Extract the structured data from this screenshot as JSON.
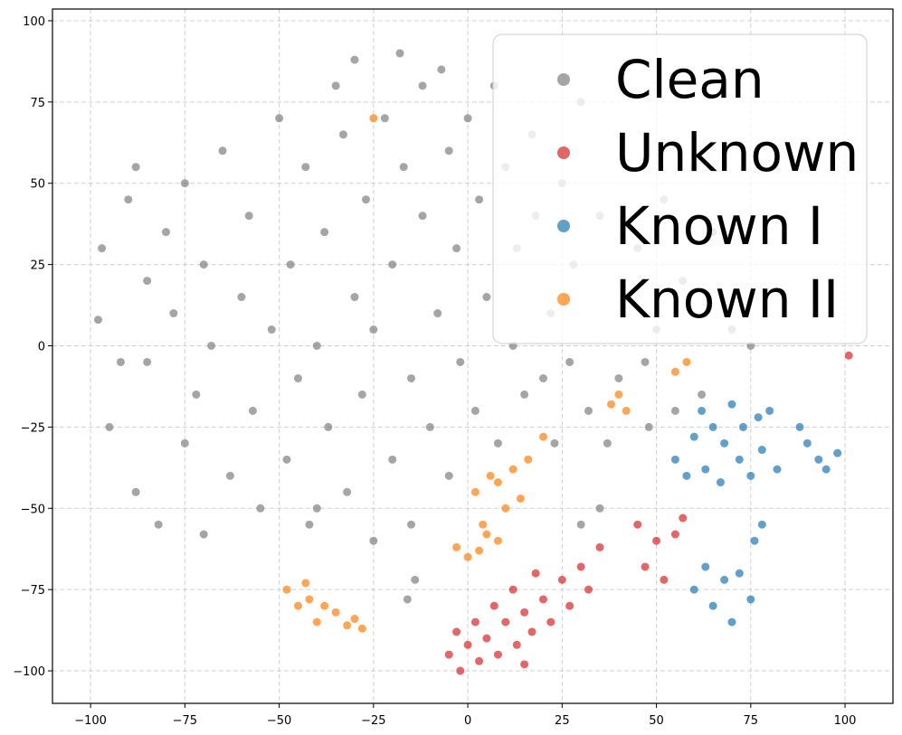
{
  "chart_data": {
    "type": "scatter",
    "xlim": [
      -110.1,
      112.7
    ],
    "ylim": [
      -110,
      103.6
    ],
    "xticks": [
      {
        "value": -100,
        "label": "−100"
      },
      {
        "value": -75,
        "label": "−75"
      },
      {
        "value": -50,
        "label": "−50"
      },
      {
        "value": -25,
        "label": "−25"
      },
      0,
      25,
      50,
      75,
      100
    ],
    "yticks": [
      {
        "value": -100,
        "label": "−100"
      },
      {
        "value": -75,
        "label": "−75"
      },
      {
        "value": -50,
        "label": "−50"
      },
      {
        "value": -25,
        "label": "−25"
      },
      0,
      25,
      50,
      75,
      100
    ],
    "grid": true,
    "legend": "upper right",
    "series": [
      {
        "name": "Clean",
        "color": "#7f7f7f",
        "x": [
          -98,
          -95,
          -97,
          -90,
          -88,
          -85,
          -85,
          -82,
          -80,
          -78,
          -75,
          -75,
          -72,
          -70,
          -70,
          -68,
          -65,
          -63,
          -60,
          -58,
          -57,
          -55,
          -52,
          -50,
          -48,
          -47,
          -45,
          -43,
          -42,
          -40,
          -38,
          -37,
          -35,
          -33,
          -32,
          -30,
          -30,
          -28,
          -27,
          -25,
          -25,
          -22,
          -20,
          -20,
          -18,
          -17,
          -15,
          -15,
          -12,
          -12,
          -10,
          -8,
          -7,
          -5,
          -5,
          -3,
          -2,
          0,
          2,
          3,
          5,
          7,
          8,
          10,
          12,
          13,
          15,
          17,
          18,
          20,
          22,
          23,
          25,
          27,
          28,
          30,
          32,
          35,
          37,
          40,
          42,
          45,
          47,
          48,
          50,
          52,
          55,
          57,
          60,
          62,
          65,
          70,
          75,
          -14,
          -16,
          30,
          35,
          -40,
          -92,
          -88
        ],
        "y": [
          8,
          -25,
          30,
          45,
          -45,
          20,
          -5,
          -55,
          35,
          10,
          -30,
          50,
          -15,
          25,
          -58,
          0,
          60,
          -40,
          15,
          40,
          -20,
          -50,
          5,
          70,
          -35,
          25,
          -10,
          55,
          -55,
          0,
          35,
          -25,
          80,
          65,
          -45,
          15,
          88,
          -15,
          45,
          -60,
          5,
          70,
          25,
          -35,
          90,
          55,
          -10,
          -55,
          40,
          80,
          -25,
          10,
          85,
          60,
          -40,
          30,
          -5,
          70,
          -20,
          45,
          15,
          80,
          -30,
          55,
          0,
          30,
          -15,
          65,
          40,
          -10,
          10,
          -30,
          50,
          -5,
          25,
          75,
          -20,
          40,
          -30,
          -10,
          15,
          30,
          -5,
          -25,
          5,
          45,
          -20,
          20,
          55,
          -15,
          35,
          5,
          0,
          -72,
          -78,
          -55,
          -50,
          -50,
          -5,
          55
        ]
      },
      {
        "name": "Unknown",
        "color": "#d62728",
        "x": [
          -5,
          -3,
          -2,
          0,
          2,
          3,
          5,
          7,
          8,
          10,
          12,
          13,
          15,
          15,
          17,
          18,
          20,
          22,
          25,
          27,
          30,
          32,
          35,
          45,
          47,
          50,
          52,
          55,
          57,
          101
        ],
        "y": [
          -95,
          -88,
          -100,
          -92,
          -85,
          -97,
          -90,
          -80,
          -95,
          -85,
          -75,
          -92,
          -82,
          -98,
          -88,
          -70,
          -78,
          -85,
          -72,
          -80,
          -68,
          -75,
          -62,
          -55,
          -68,
          -60,
          -72,
          -58,
          -53,
          -3
        ]
      },
      {
        "name": "Known I",
        "color": "#1f77b4",
        "x": [
          55,
          58,
          60,
          62,
          63,
          65,
          67,
          68,
          70,
          72,
          73,
          75,
          77,
          78,
          80,
          82,
          60,
          63,
          65,
          68,
          70,
          72,
          75,
          76,
          78,
          88,
          90,
          93,
          95,
          98
        ],
        "y": [
          -35,
          -40,
          -28,
          -20,
          -38,
          -25,
          -42,
          -30,
          -18,
          -35,
          -25,
          -40,
          -22,
          -32,
          -20,
          -38,
          -75,
          -68,
          -80,
          -72,
          -85,
          -70,
          -78,
          -60,
          -55,
          -25,
          -30,
          -35,
          -38,
          -33
        ]
      },
      {
        "name": "Known II",
        "color": "#ff7f0e",
        "x": [
          -48,
          -45,
          -42,
          -40,
          -38,
          -35,
          -32,
          -30,
          -28,
          -43,
          2,
          4,
          6,
          8,
          10,
          12,
          14,
          16,
          5,
          8,
          -3,
          0,
          3,
          38,
          40,
          42,
          55,
          58,
          -25,
          20
        ],
        "y": [
          -75,
          -80,
          -78,
          -85,
          -80,
          -82,
          -86,
          -84,
          -87,
          -73,
          -45,
          -55,
          -40,
          -60,
          -50,
          -38,
          -47,
          -35,
          -58,
          -42,
          -62,
          -65,
          -63,
          -18,
          -15,
          -20,
          -8,
          -5,
          70,
          -28
        ]
      }
    ]
  }
}
